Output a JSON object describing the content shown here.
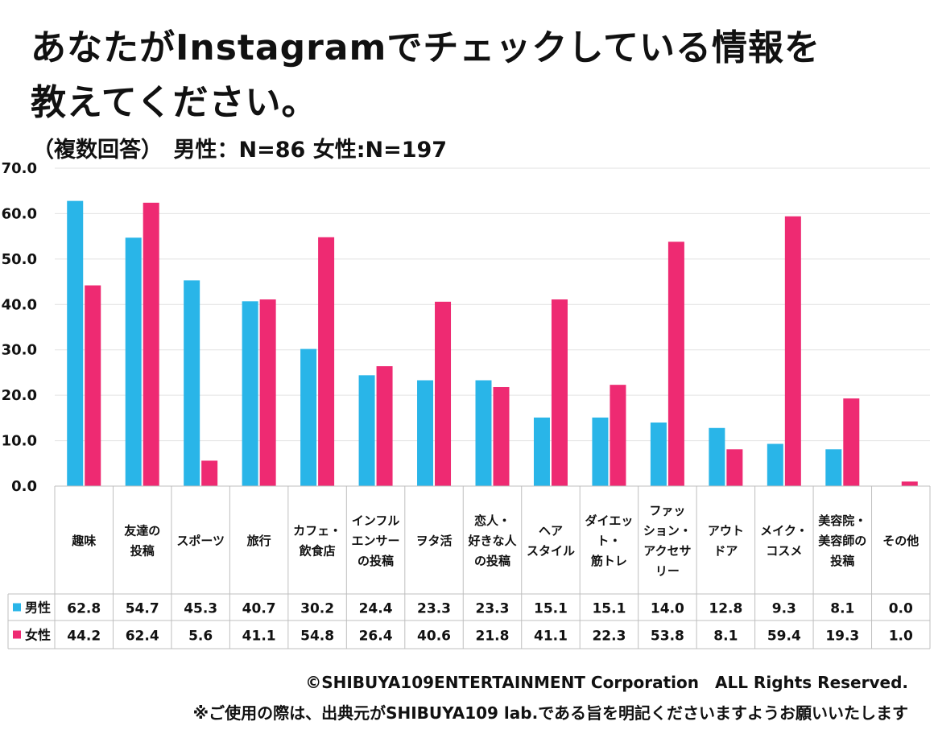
{
  "title_line1": "あなたがInstagramでチェックしている情報を",
  "title_line2": "教えてください。",
  "subtitle": "（複数回答）　男性：N=86 女性:N=197",
  "copyright": "©SHIBUYA109ENTERTAINMENT Corporation　ALL Rights Reserved.",
  "usage_note": "※ご使用の際は、出典元がSHIBUYA109 lab.である旨を明記くださいますようお願いいたします",
  "colors": {
    "male": "#29B5E8",
    "female": "#EE2A72",
    "grid": "#e2e2e2",
    "table_border": "#bfbfbf"
  },
  "chart_data": {
    "type": "bar",
    "ylim": [
      0,
      70
    ],
    "yticks": [
      "0.0",
      "10.0",
      "20.0",
      "30.0",
      "40.0",
      "50.0",
      "60.0",
      "70.0"
    ],
    "grid": true,
    "legend": "data-table",
    "categories": [
      [
        "趣味"
      ],
      [
        "友達の",
        "投稿"
      ],
      [
        "スポーツ"
      ],
      [
        "旅行"
      ],
      [
        "カフェ・",
        "飲食店"
      ],
      [
        "インフル",
        "エンサー",
        "の投稿"
      ],
      [
        "ヲタ活"
      ],
      [
        "恋人・",
        "好きな人",
        "の投稿"
      ],
      [
        "ヘア",
        "スタイル"
      ],
      [
        "ダイエッ",
        "ト・",
        "筋トレ"
      ],
      [
        "ファッ",
        "ション・",
        "アクセサ",
        "リー"
      ],
      [
        "アウト",
        "ドア"
      ],
      [
        "メイク・",
        "コスメ"
      ],
      [
        "美容院・",
        "美容師の",
        "投稿"
      ],
      [
        "その他"
      ]
    ],
    "series": [
      {
        "name": "男性",
        "color": "#29B5E8",
        "values": [
          62.8,
          54.7,
          45.3,
          40.7,
          30.2,
          24.4,
          23.3,
          23.3,
          15.1,
          15.1,
          14.0,
          12.8,
          9.3,
          8.1,
          0.0
        ]
      },
      {
        "name": "女性",
        "color": "#EE2A72",
        "values": [
          44.2,
          62.4,
          5.6,
          41.1,
          54.8,
          26.4,
          40.6,
          21.8,
          41.1,
          22.3,
          53.8,
          8.1,
          59.4,
          19.3,
          1.0
        ]
      }
    ]
  }
}
